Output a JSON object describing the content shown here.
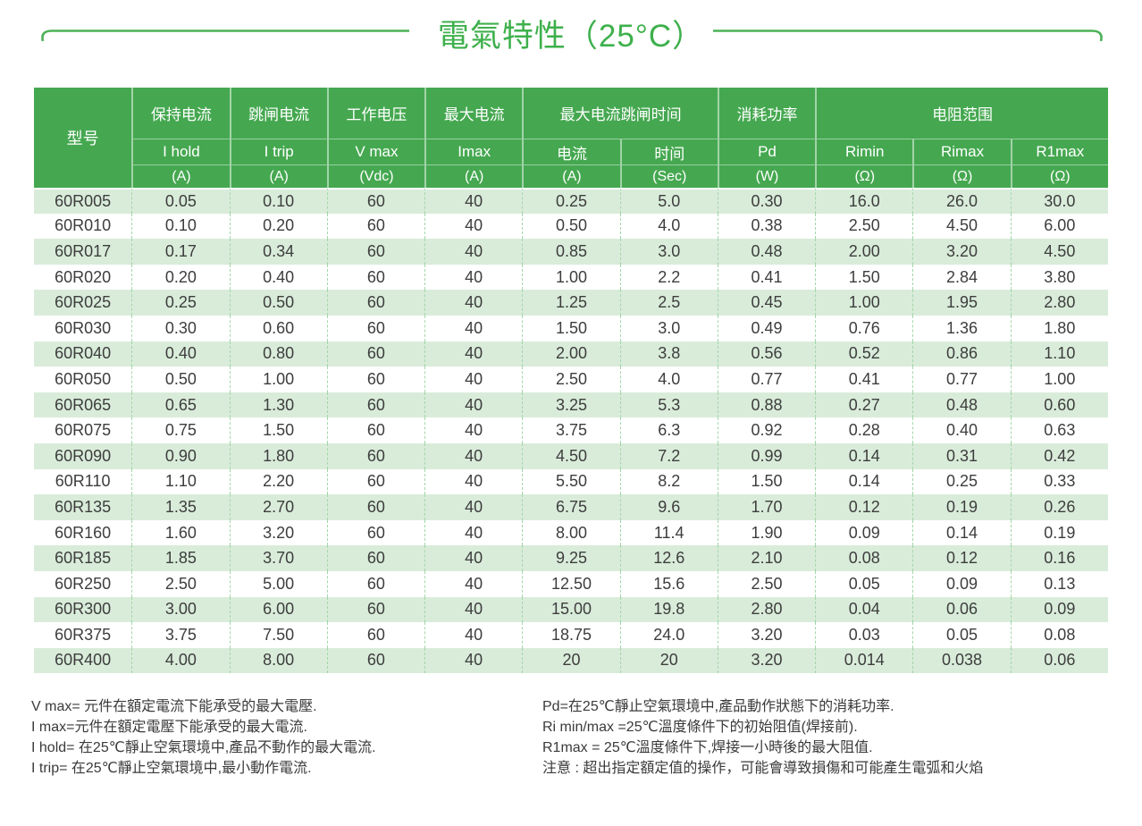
{
  "title": "電氣特性（25°C）",
  "colors": {
    "header_green": "#45a850",
    "title_green": "#3eb04c",
    "line_green": "#4cb256",
    "row_alt_green": "#d9ecda",
    "dashed_border": "#a3d6a9",
    "body_text": "#3d3d3d"
  },
  "table": {
    "header": {
      "model_label": "型号",
      "top": [
        "保持电流",
        "跳闸电流",
        "工作电压",
        "最大电流",
        "最大电流跳闸时间",
        "消耗功率",
        "电阻范围"
      ],
      "sub": [
        "I hold",
        "I trip",
        "V max",
        "Imax",
        "电流",
        "时间",
        "Pd",
        "Rimin",
        "Rimax",
        "R1max"
      ],
      "units": [
        "(A)",
        "(A)",
        "(Vdc)",
        "(A)",
        "(A)",
        "(Sec)",
        "(W)",
        "(Ω)",
        "(Ω)",
        "(Ω)"
      ]
    },
    "rows": [
      [
        "60R005",
        "0.05",
        "0.10",
        "60",
        "40",
        "0.25",
        "5.0",
        "0.30",
        "16.0",
        "26.0",
        "30.0"
      ],
      [
        "60R010",
        "0.10",
        "0.20",
        "60",
        "40",
        "0.50",
        "4.0",
        "0.38",
        "2.50",
        "4.50",
        "6.00"
      ],
      [
        "60R017",
        "0.17",
        "0.34",
        "60",
        "40",
        "0.85",
        "3.0",
        "0.48",
        "2.00",
        "3.20",
        "4.50"
      ],
      [
        "60R020",
        "0.20",
        "0.40",
        "60",
        "40",
        "1.00",
        "2.2",
        "0.41",
        "1.50",
        "2.84",
        "3.80"
      ],
      [
        "60R025",
        "0.25",
        "0.50",
        "60",
        "40",
        "1.25",
        "2.5",
        "0.45",
        "1.00",
        "1.95",
        "2.80"
      ],
      [
        "60R030",
        "0.30",
        "0.60",
        "60",
        "40",
        "1.50",
        "3.0",
        "0.49",
        "0.76",
        "1.36",
        "1.80"
      ],
      [
        "60R040",
        "0.40",
        "0.80",
        "60",
        "40",
        "2.00",
        "3.8",
        "0.56",
        "0.52",
        "0.86",
        "1.10"
      ],
      [
        "60R050",
        "0.50",
        "1.00",
        "60",
        "40",
        "2.50",
        "4.0",
        "0.77",
        "0.41",
        "0.77",
        "1.00"
      ],
      [
        "60R065",
        "0.65",
        "1.30",
        "60",
        "40",
        "3.25",
        "5.3",
        "0.88",
        "0.27",
        "0.48",
        "0.60"
      ],
      [
        "60R075",
        "0.75",
        "1.50",
        "60",
        "40",
        "3.75",
        "6.3",
        "0.92",
        "0.28",
        "0.40",
        "0.63"
      ],
      [
        "60R090",
        "0.90",
        "1.80",
        "60",
        "40",
        "4.50",
        "7.2",
        "0.99",
        "0.14",
        "0.31",
        "0.42"
      ],
      [
        "60R110",
        "1.10",
        "2.20",
        "60",
        "40",
        "5.50",
        "8.2",
        "1.50",
        "0.14",
        "0.25",
        "0.33"
      ],
      [
        "60R135",
        "1.35",
        "2.70",
        "60",
        "40",
        "6.75",
        "9.6",
        "1.70",
        "0.12",
        "0.19",
        "0.26"
      ],
      [
        "60R160",
        "1.60",
        "3.20",
        "60",
        "40",
        "8.00",
        "11.4",
        "1.90",
        "0.09",
        "0.14",
        "0.19"
      ],
      [
        "60R185",
        "1.85",
        "3.70",
        "60",
        "40",
        "9.25",
        "12.6",
        "2.10",
        "0.08",
        "0.12",
        "0.16"
      ],
      [
        "60R250",
        "2.50",
        "5.00",
        "60",
        "40",
        "12.50",
        "15.6",
        "2.50",
        "0.05",
        "0.09",
        "0.13"
      ],
      [
        "60R300",
        "3.00",
        "6.00",
        "60",
        "40",
        "15.00",
        "19.8",
        "2.80",
        "0.04",
        "0.06",
        "0.09"
      ],
      [
        "60R375",
        "3.75",
        "7.50",
        "60",
        "40",
        "18.75",
        "24.0",
        "3.20",
        "0.03",
        "0.05",
        "0.08"
      ],
      [
        "60R400",
        "4.00",
        "8.00",
        "60",
        "40",
        "20",
        "20",
        "3.20",
        "0.014",
        "0.038",
        "0.06"
      ]
    ]
  },
  "footnotes": {
    "left": [
      "V max= 元件在額定電流下能承受的最大電壓.",
      "I max=元件在額定電壓下能承受的最大電流.",
      "I hold= 在25℃靜止空氣環境中,產品不動作的最大電流.",
      "I trip= 在25℃靜止空氣環境中,最小動作電流."
    ],
    "right": [
      "Pd=在25℃靜止空氣環境中,產品動作狀態下的消耗功率.",
      "Ri min/max  =25℃溫度條件下的初始阻值(焊接前).",
      "R1max  = 25℃溫度條件下,焊接一小時後的最大阻值.",
      "注意 : 超出指定額定值的操作，可能會導致損傷和可能產生電弧和火焰"
    ]
  }
}
